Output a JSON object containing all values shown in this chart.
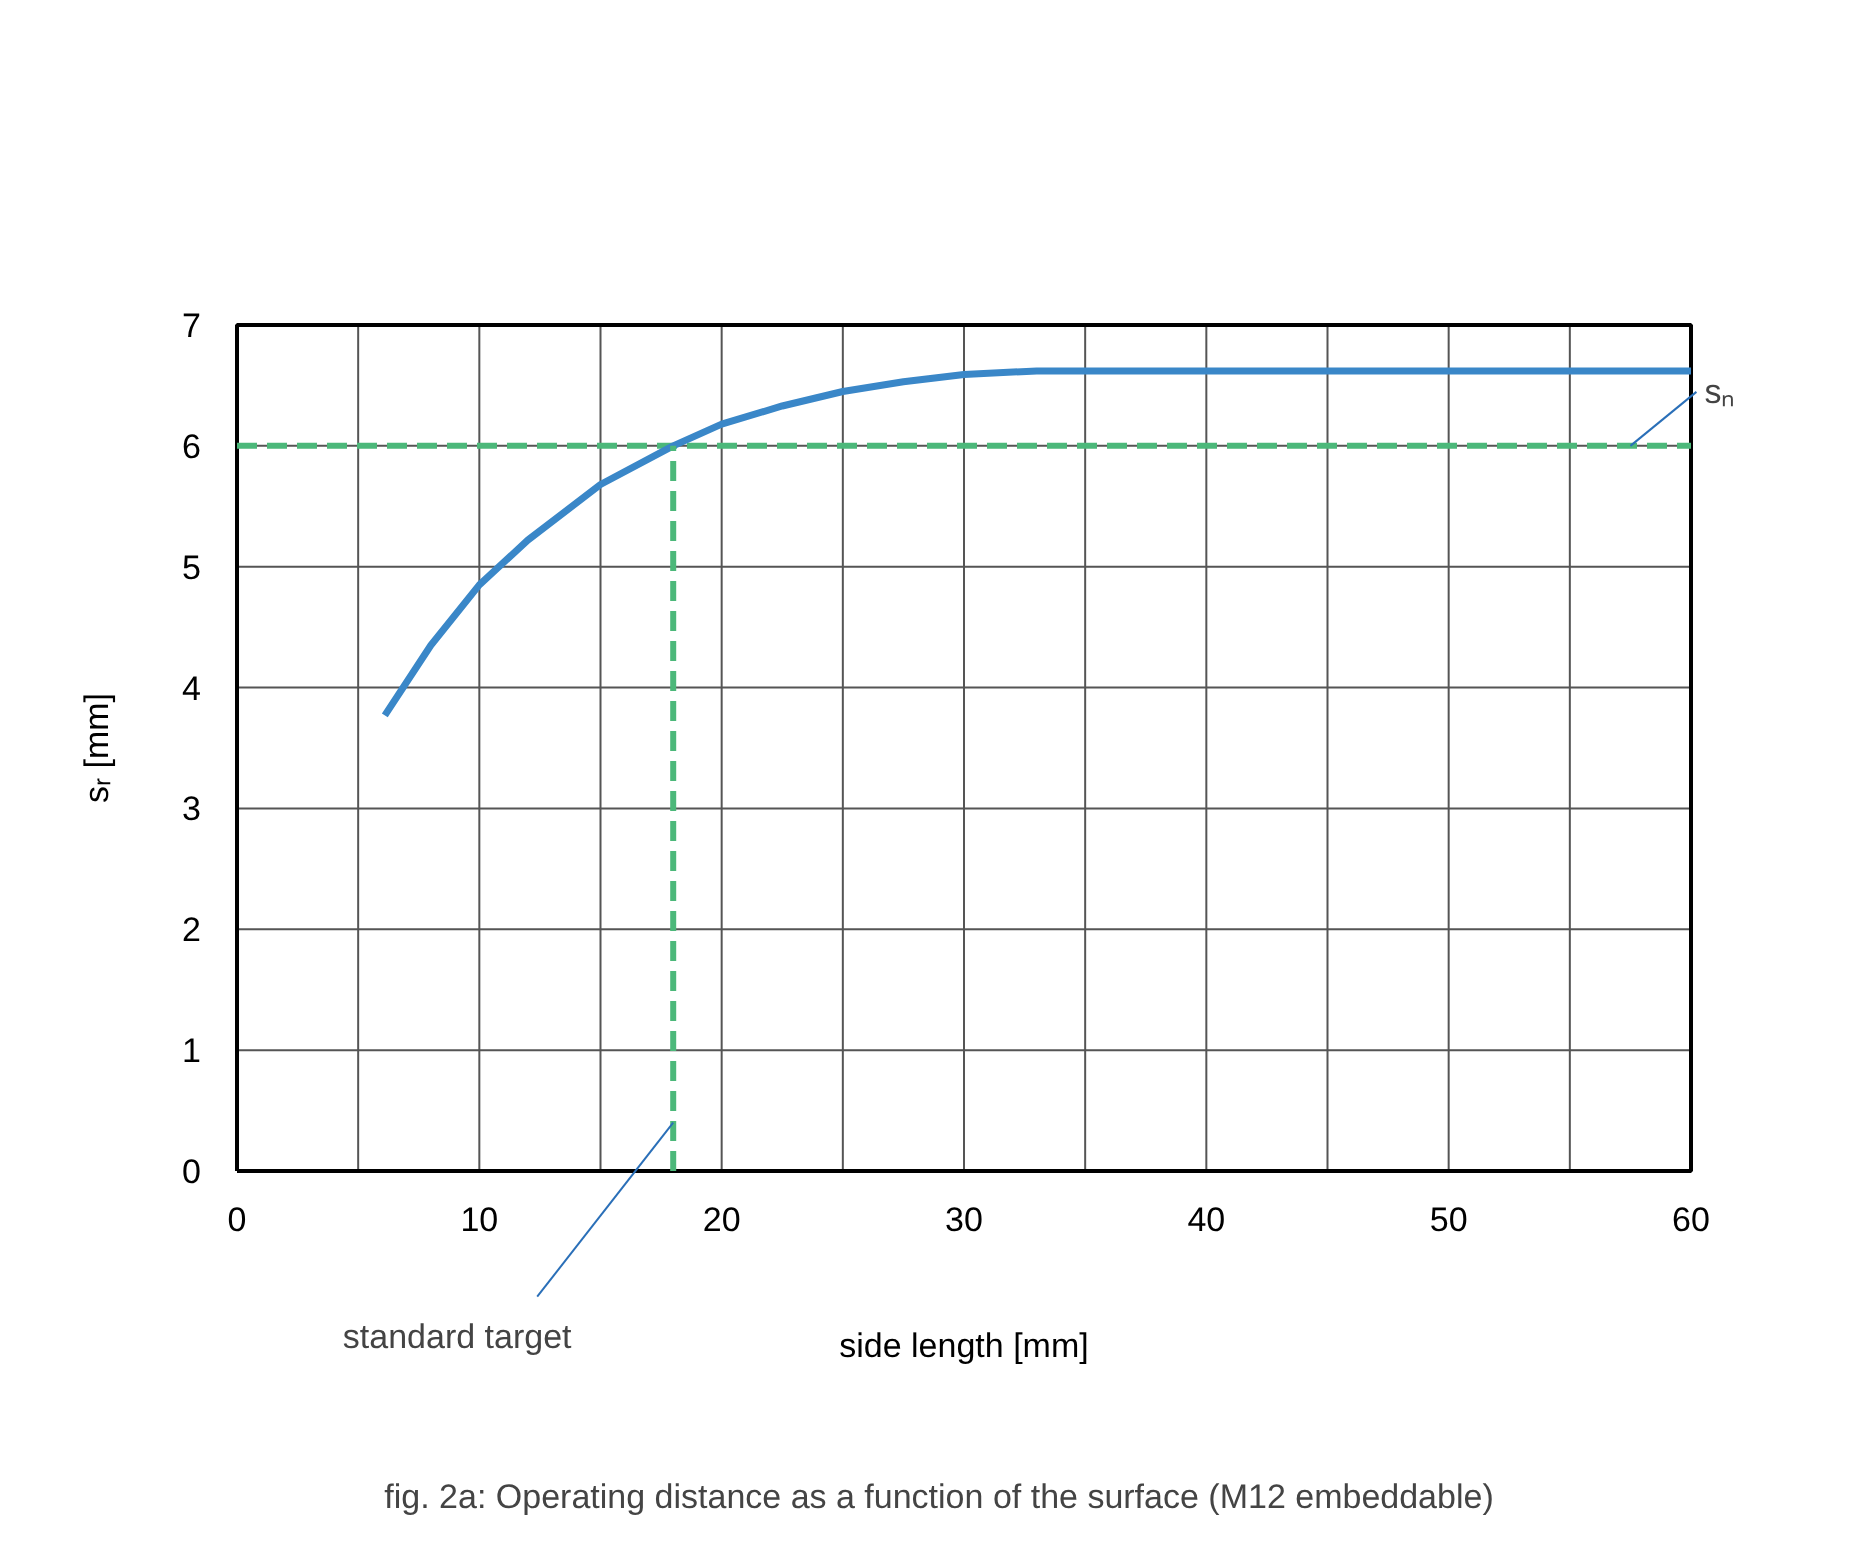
{
  "chart_data": {
    "type": "line",
    "xlabel": "side length [mm]",
    "ylabel": "sᵣ [mm]",
    "xlim": [
      0,
      60
    ],
    "ylim": [
      0,
      7
    ],
    "xticks": [
      0,
      {
        "value": 5,
        "label": null
      },
      10,
      {
        "value": 15,
        "label": null
      },
      20,
      {
        "value": 25,
        "label": null
      },
      30,
      {
        "value": 35,
        "label": null
      },
      40,
      {
        "value": 45,
        "label": null
      },
      50,
      {
        "value": 55,
        "label": null
      },
      60
    ],
    "yticks": [
      0,
      1,
      2,
      3,
      4,
      5,
      6,
      7
    ],
    "grid": true,
    "series": [
      {
        "color": "#3a87c8",
        "x": [
          6.1,
          8,
          10,
          12,
          15,
          18,
          20,
          22.5,
          25,
          27.5,
          30,
          33,
          36,
          60
        ],
        "values": [
          3.77,
          4.35,
          4.85,
          5.22,
          5.68,
          6.0,
          6.18,
          6.33,
          6.45,
          6.53,
          6.59,
          6.62,
          6.62,
          6.62
        ]
      },
      {
        "color": "#4cb87a",
        "line_style": "dashed",
        "x": [
          18,
          18
        ],
        "values": [
          0,
          6
        ]
      }
    ],
    "ref_lines": [
      {
        "axis": "y",
        "value": 6,
        "color": "#4cb87a",
        "line_style": "dashed"
      }
    ],
    "annotations": [
      {
        "text": "sₙ",
        "x": 57.5,
        "y": 6
      },
      {
        "text": "standard target",
        "x": 18,
        "y": 0.4
      },
      "fig. 2a: Operating distance as a function of the surface (M12 embeddable)"
    ]
  }
}
